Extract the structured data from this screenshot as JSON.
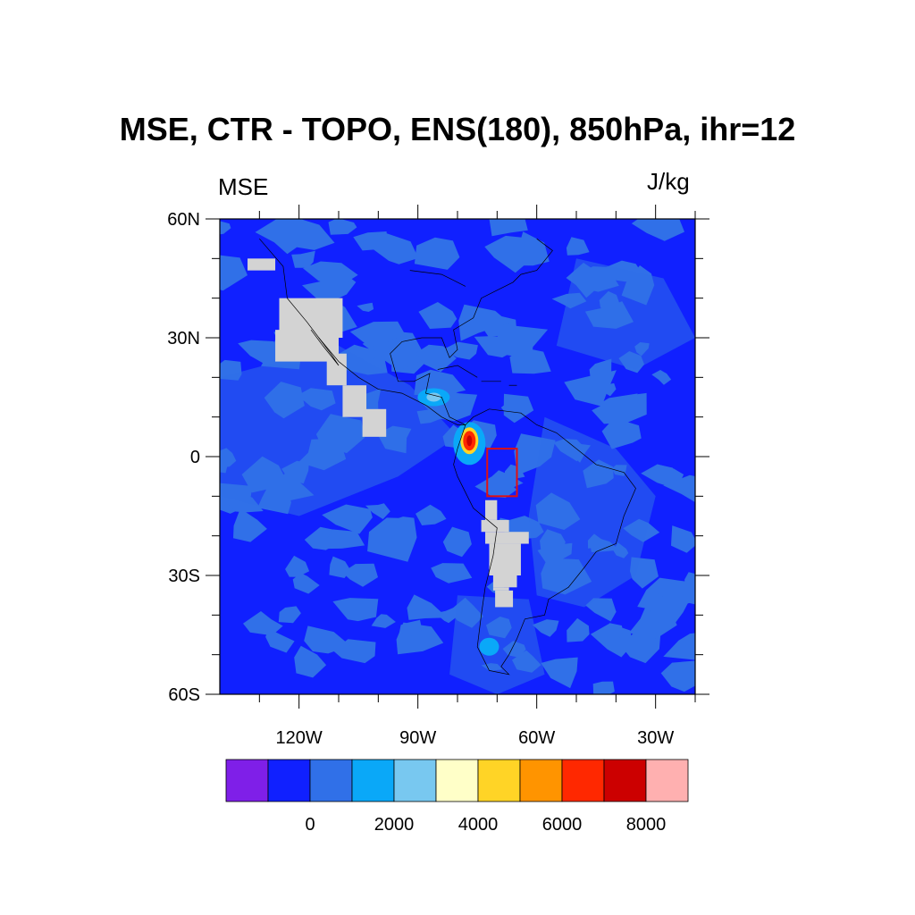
{
  "title": "MSE, CTR - TOPO, ENS(180), 850hPa, ihr=12",
  "left_string": "MSE",
  "right_string": "J/kg",
  "map": {
    "projection": "cylindrical equidistant",
    "lon_range": [
      -140,
      -20
    ],
    "lat_range": [
      -60,
      60
    ],
    "lat_tick_labels": [
      {
        "value": 60,
        "label": "60N"
      },
      {
        "value": 30,
        "label": "30N"
      },
      {
        "value": 0,
        "label": "0"
      },
      {
        "value": -30,
        "label": "30S"
      },
      {
        "value": -60,
        "label": "60S"
      }
    ],
    "lon_tick_labels": [
      {
        "value": -120,
        "label": "120W"
      },
      {
        "value": -90,
        "label": "90W"
      },
      {
        "value": -60,
        "label": "60W"
      },
      {
        "value": -30,
        "label": "30W"
      }
    ],
    "dominant_fill": "#1020ff",
    "secondary_fill": "#3070e8",
    "missing_fill": "#d3d3d3",
    "box_color": "#e01010",
    "region_box": {
      "lon": [
        -72.5,
        -65
      ],
      "lat": [
        -10,
        2
      ]
    },
    "features": [
      {
        "name": "max-peak",
        "lon": -77,
        "lat": 4,
        "level": "8000+"
      },
      {
        "name": "central-america-light",
        "lon": -86,
        "lat": 15,
        "level": "2000-3000"
      },
      {
        "name": "patagonia-light",
        "lon": -72,
        "lat": -48,
        "level": "1000-2000"
      }
    ]
  },
  "colorbar": {
    "colors": [
      "#7f1fe8",
      "#1020ff",
      "#3070e8",
      "#0aa8f8",
      "#78c8f0",
      "#ffffc8",
      "#ffd426",
      "#ff9400",
      "#ff2800",
      "#cc0000",
      "#ffb0b0"
    ],
    "tick_labels": [
      "0",
      "2000",
      "4000",
      "6000",
      "8000"
    ],
    "tick_positions": [
      2,
      4,
      6,
      8,
      10
    ]
  }
}
